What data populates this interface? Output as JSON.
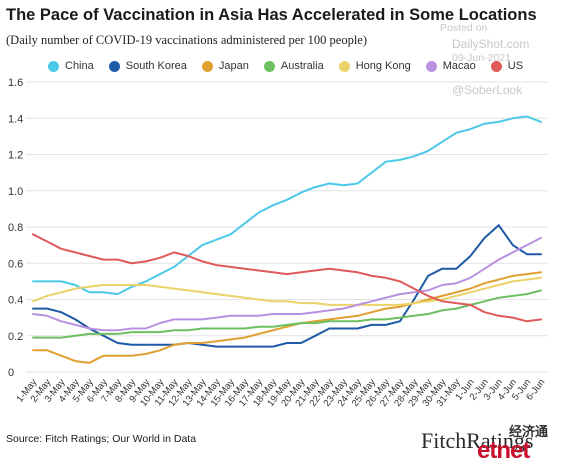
{
  "header": {
    "title": "The Pace of Vaccination in Asia Has Accelerated in Some Locations",
    "subtitle": "(Daily number of COVID-19 vaccinations administered per 100 people)"
  },
  "watermark": {
    "posted": "Posted on",
    "site": "DailyShot.com",
    "date": "09-Jun-2021",
    "handle": "@SoberLook"
  },
  "footer": {
    "source": "Source: Fitch Ratings; Our World in Data",
    "logo_fitch": "FitchRatings",
    "logo_cn": "经济通",
    "logo_etnet": "etnet"
  },
  "chart_data": {
    "type": "line",
    "x": [
      "1-May",
      "2-May",
      "3-May",
      "4-May",
      "5-May",
      "6-May",
      "7-May",
      "8-May",
      "9-May",
      "10-May",
      "11-May",
      "12-May",
      "13-May",
      "14-May",
      "15-May",
      "16-May",
      "17-May",
      "18-May",
      "19-May",
      "20-May",
      "21-May",
      "22-May",
      "23-May",
      "24-May",
      "25-May",
      "26-May",
      "27-May",
      "28-May",
      "29-May",
      "30-May",
      "31-May",
      "1-Jun",
      "2-Jun",
      "3-Jun",
      "4-Jun",
      "5-Jun",
      "6-Jun"
    ],
    "ylim": [
      0,
      1.6
    ],
    "yticks": [
      "0",
      "0.2",
      "0.4",
      "0.6",
      "0.8",
      "1.0",
      "1.2",
      "1.4",
      "1.6"
    ],
    "grid": "horizontal",
    "legend_position": "top",
    "series": [
      {
        "name": "China",
        "color": "#4cc9e8",
        "values": [
          0.5,
          0.5,
          0.5,
          0.48,
          0.44,
          0.44,
          0.43,
          0.47,
          0.5,
          0.54,
          0.58,
          0.64,
          0.7,
          0.73,
          0.76,
          0.82,
          0.88,
          0.92,
          0.95,
          0.99,
          1.02,
          1.04,
          1.03,
          1.04,
          1.1,
          1.16,
          1.17,
          1.19,
          1.22,
          1.27,
          1.32,
          1.34,
          1.37,
          1.38,
          1.4,
          1.41,
          1.38
        ]
      },
      {
        "name": "South Korea",
        "color": "#1f5aa6",
        "values": [
          0.35,
          0.35,
          0.33,
          0.29,
          0.24,
          0.2,
          0.16,
          0.15,
          0.15,
          0.15,
          0.15,
          0.16,
          0.15,
          0.14,
          0.14,
          0.14,
          0.14,
          0.14,
          0.16,
          0.16,
          0.2,
          0.24,
          0.24,
          0.24,
          0.26,
          0.26,
          0.28,
          0.4,
          0.53,
          0.57,
          0.57,
          0.64,
          0.74,
          0.81,
          0.7,
          0.65,
          0.65
        ]
      },
      {
        "name": "Japan",
        "color": "#e0a030",
        "values": [
          0.12,
          0.12,
          0.09,
          0.06,
          0.05,
          0.09,
          0.09,
          0.09,
          0.1,
          0.12,
          0.15,
          0.16,
          0.16,
          0.17,
          0.18,
          0.19,
          0.21,
          0.23,
          0.25,
          0.27,
          0.28,
          0.29,
          0.3,
          0.31,
          0.33,
          0.35,
          0.36,
          0.38,
          0.4,
          0.42,
          0.44,
          0.46,
          0.49,
          0.51,
          0.53,
          0.54,
          0.55
        ]
      },
      {
        "name": "Australia",
        "color": "#6cc060",
        "values": [
          0.19,
          0.19,
          0.19,
          0.2,
          0.21,
          0.21,
          0.21,
          0.22,
          0.22,
          0.22,
          0.23,
          0.23,
          0.24,
          0.24,
          0.24,
          0.24,
          0.25,
          0.25,
          0.26,
          0.27,
          0.27,
          0.28,
          0.28,
          0.28,
          0.29,
          0.29,
          0.3,
          0.31,
          0.32,
          0.34,
          0.35,
          0.37,
          0.39,
          0.41,
          0.42,
          0.43,
          0.45
        ]
      },
      {
        "name": "Hong Kong",
        "color": "#ebd36a",
        "values": [
          0.39,
          0.42,
          0.44,
          0.46,
          0.47,
          0.48,
          0.48,
          0.48,
          0.48,
          0.47,
          0.46,
          0.45,
          0.44,
          0.43,
          0.42,
          0.41,
          0.4,
          0.39,
          0.39,
          0.38,
          0.38,
          0.37,
          0.37,
          0.37,
          0.37,
          0.37,
          0.37,
          0.38,
          0.39,
          0.4,
          0.42,
          0.44,
          0.46,
          0.48,
          0.5,
          0.51,
          0.52
        ]
      },
      {
        "name": "Macao",
        "color": "#b991e0",
        "values": [
          0.32,
          0.31,
          0.28,
          0.26,
          0.24,
          0.23,
          0.23,
          0.24,
          0.24,
          0.27,
          0.29,
          0.29,
          0.29,
          0.3,
          0.31,
          0.31,
          0.31,
          0.32,
          0.32,
          0.32,
          0.33,
          0.34,
          0.35,
          0.37,
          0.39,
          0.41,
          0.43,
          0.44,
          0.45,
          0.48,
          0.49,
          0.52,
          0.57,
          0.62,
          0.66,
          0.7,
          0.74
        ]
      },
      {
        "name": "US",
        "color": "#e05a5a",
        "values": [
          0.76,
          0.72,
          0.68,
          0.66,
          0.64,
          0.62,
          0.62,
          0.6,
          0.61,
          0.63,
          0.66,
          0.64,
          0.61,
          0.59,
          0.58,
          0.57,
          0.56,
          0.55,
          0.54,
          0.55,
          0.56,
          0.57,
          0.56,
          0.55,
          0.53,
          0.52,
          0.5,
          0.46,
          0.42,
          0.39,
          0.38,
          0.37,
          0.33,
          0.31,
          0.3,
          0.28,
          0.29
        ]
      }
    ]
  }
}
